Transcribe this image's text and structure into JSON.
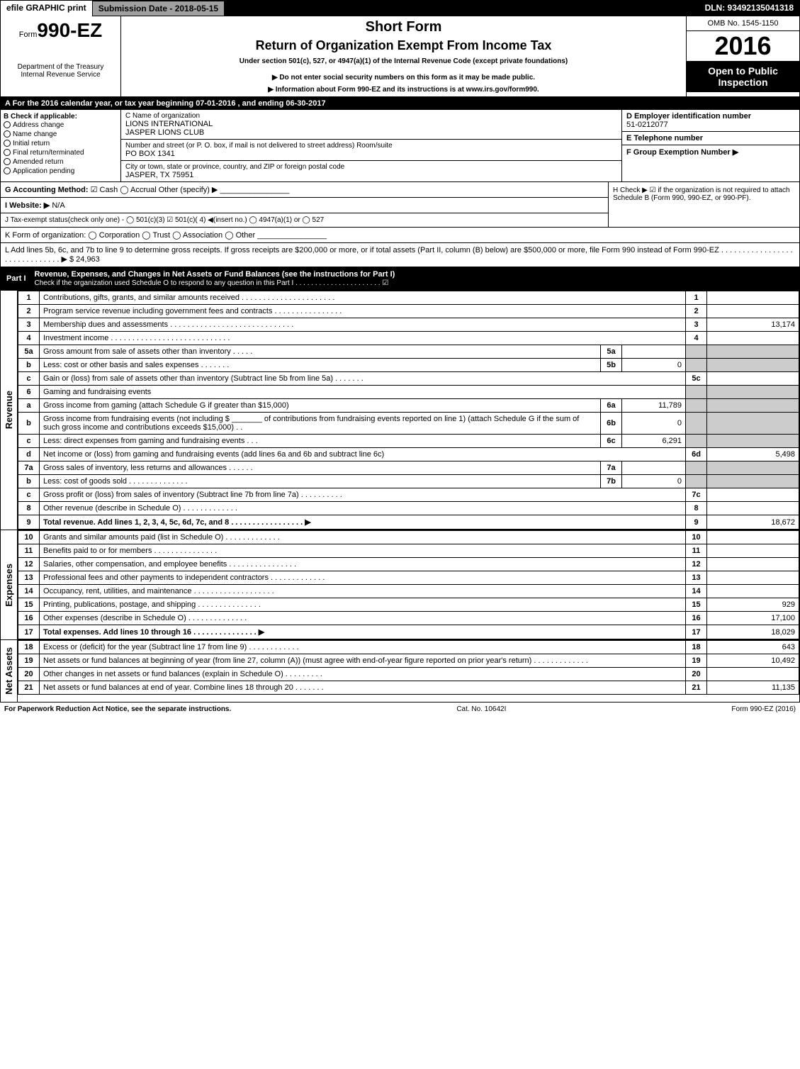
{
  "topbar": {
    "efile": "efile GRAPHIC print",
    "subdate_label": "Submission Date - 2018-05-15",
    "dln": "DLN: 93492135041318"
  },
  "header": {
    "form_prefix": "Form",
    "form_no": "990-EZ",
    "dept": "Department of the Treasury",
    "irs": "Internal Revenue Service",
    "title": "Short Form",
    "subtitle": "Return of Organization Exempt From Income Tax",
    "under": "Under section 501(c), 527, or 4947(a)(1) of the Internal Revenue Code (except private foundations)",
    "note1": "▶ Do not enter social security numbers on this form as it may be made public.",
    "note2": "▶ Information about Form 990-EZ and its instructions is at www.irs.gov/form990.",
    "omb": "OMB No. 1545-1150",
    "year": "2016",
    "open": "Open to Public Inspection"
  },
  "sectionA": "A For the 2016 calendar year, or tax year beginning 07-01-2016 , and ending 06-30-2017",
  "B": {
    "label": "B Check if applicable:",
    "items": [
      "Address change",
      "Name change",
      "Initial return",
      "Final return/terminated",
      "Amended return",
      "Application pending"
    ]
  },
  "C": {
    "name_lbl": "C Name of organization",
    "name1": "LIONS INTERNATIONAL",
    "name2": "JASPER LIONS CLUB",
    "addr_lbl": "Number and street (or P. O. box, if mail is not delivered to street address)   Room/suite",
    "addr": "PO BOX 1341",
    "city_lbl": "City or town, state or province, country, and ZIP or foreign postal code",
    "city": "JASPER, TX  75951"
  },
  "D": {
    "lbl": "D Employer identification number",
    "val": "51-0212077"
  },
  "E": {
    "lbl": "E Telephone number",
    "val": ""
  },
  "F": {
    "lbl": "F Group Exemption Number ▶",
    "val": ""
  },
  "G": {
    "lbl": "G Accounting Method:",
    "opts": "☑ Cash  ◯ Accrual  Other (specify) ▶ ________________"
  },
  "H": {
    "lbl": "H  Check ▶ ☑ if the organization is not required to attach Schedule B (Form 990, 990-EZ, or 990-PF)."
  },
  "I": {
    "lbl": "I Website: ▶",
    "val": "N/A"
  },
  "J": {
    "lbl": "J Tax-exempt status(check only one) - ◯ 501(c)(3) ☑ 501(c)( 4) ◀(insert no.) ◯ 4947(a)(1) or ◯ 527"
  },
  "K": {
    "lbl": "K Form of organization:  ◯ Corporation  ◯ Trust  ◯ Association  ◯ Other ________________"
  },
  "L": {
    "lbl": "L Add lines 5b, 6c, and 7b to line 9 to determine gross receipts. If gross receipts are $200,000 or more, or if total assets (Part II, column (B) below) are $500,000 or more, file Form 990 instead of Form 990-EZ . . . . . . . . . . . . . . . . . . . . . . . . . . . . . . ▶ $ 24,963"
  },
  "part1": {
    "label": "Part I",
    "title": "Revenue, Expenses, and Changes in Net Assets or Fund Balances (see the instructions for Part I)",
    "check": "Check if the organization used Schedule O to respond to any question in this Part I . . . . . . . . . . . . . . . . . . . . . . ☑"
  },
  "sections": {
    "revenue": "Revenue",
    "expenses": "Expenses",
    "netassets": "Net Assets"
  },
  "lines": [
    {
      "n": "1",
      "d": "Contributions, gifts, grants, and similar amounts received . . . . . . . . . . . . . . . . . . . . . .",
      "rn": "1",
      "amt": ""
    },
    {
      "n": "2",
      "d": "Program service revenue including government fees and contracts . . . . . . . . . . . . . . . .",
      "rn": "2",
      "amt": ""
    },
    {
      "n": "3",
      "d": "Membership dues and assessments . . . . . . . . . . . . . . . . . . . . . . . . . . . . .",
      "rn": "3",
      "amt": "13,174"
    },
    {
      "n": "4",
      "d": "Investment income . . . . . . . . . . . . . . . . . . . . . . . . . . . .",
      "rn": "4",
      "amt": ""
    },
    {
      "n": "5a",
      "d": "Gross amount from sale of assets other than inventory . . . . .",
      "sc": "5a",
      "sv": "",
      "shade": true
    },
    {
      "n": "b",
      "d": "Less: cost or other basis and sales expenses . . . . . . .",
      "sc": "5b",
      "sv": "0",
      "shade": true
    },
    {
      "n": "c",
      "d": "Gain or (loss) from sale of assets other than inventory (Subtract line 5b from line 5a) . . . . . . .",
      "rn": "5c",
      "amt": ""
    },
    {
      "n": "6",
      "d": "Gaming and fundraising events",
      "shade": true,
      "noright": true
    },
    {
      "n": "a",
      "d": "Gross income from gaming (attach Schedule G if greater than $15,000)",
      "sc": "6a",
      "sv": "11,789",
      "shade": true
    },
    {
      "n": "b",
      "d": "Gross income from fundraising events (not including $ _______ of contributions from fundraising events reported on line 1) (attach Schedule G if the sum of such gross income and contributions exceeds $15,000)  . .",
      "sc": "6b",
      "sv": "0",
      "shade": true
    },
    {
      "n": "c",
      "d": "Less: direct expenses from gaming and fundraising events    . . .",
      "sc": "6c",
      "sv": "6,291",
      "shade": true
    },
    {
      "n": "d",
      "d": "Net income or (loss) from gaming and fundraising events (add lines 6a and 6b and subtract line 6c)",
      "rn": "6d",
      "amt": "5,498"
    },
    {
      "n": "7a",
      "d": "Gross sales of inventory, less returns and allowances . . . . . .",
      "sc": "7a",
      "sv": "",
      "shade": true
    },
    {
      "n": "b",
      "d": "Less: cost of goods sold      . . . . . . . . . . . . . .",
      "sc": "7b",
      "sv": "0",
      "shade": true
    },
    {
      "n": "c",
      "d": "Gross profit or (loss) from sales of inventory (Subtract line 7b from line 7a) . . . . . . . . . .",
      "rn": "7c",
      "amt": ""
    },
    {
      "n": "8",
      "d": "Other revenue (describe in Schedule O)       . . . . . . . . . . . . .",
      "rn": "8",
      "amt": ""
    },
    {
      "n": "9",
      "d": "Total revenue. Add lines 1, 2, 3, 4, 5c, 6d, 7c, and 8 . . . . . . . . . . . . . . . . . ▶",
      "rn": "9",
      "amt": "18,672",
      "bold": true
    }
  ],
  "exp_lines": [
    {
      "n": "10",
      "d": "Grants and similar amounts paid (list in Schedule O)     . . . . . . . . . . . . .",
      "rn": "10",
      "amt": ""
    },
    {
      "n": "11",
      "d": "Benefits paid to or for members       . . . . . . . . . . . . . . .",
      "rn": "11",
      "amt": ""
    },
    {
      "n": "12",
      "d": "Salaries, other compensation, and employee benefits . . . . . . . . . . . . . . . .",
      "rn": "12",
      "amt": ""
    },
    {
      "n": "13",
      "d": "Professional fees and other payments to independent contractors . . . . . . . . . . . . .",
      "rn": "13",
      "amt": ""
    },
    {
      "n": "14",
      "d": "Occupancy, rent, utilities, and maintenance . . . . . . . . . . . . . . . . . . .",
      "rn": "14",
      "amt": ""
    },
    {
      "n": "15",
      "d": "Printing, publications, postage, and shipping     . . . . . . . . . . . . . . .",
      "rn": "15",
      "amt": "929"
    },
    {
      "n": "16",
      "d": "Other expenses (describe in Schedule O)      . . . . . . . . . . . . . .",
      "rn": "16",
      "amt": "17,100"
    },
    {
      "n": "17",
      "d": "Total expenses. Add lines 10 through 16     . . . . . . . . . . . . . . . ▶",
      "rn": "17",
      "amt": "18,029",
      "bold": true
    }
  ],
  "na_lines": [
    {
      "n": "18",
      "d": "Excess or (deficit) for the year (Subtract line 17 from line 9)    . . . . . . . . . . . .",
      "rn": "18",
      "amt": "643"
    },
    {
      "n": "19",
      "d": "Net assets or fund balances at beginning of year (from line 27, column (A)) (must agree with end-of-year figure reported on prior year's return)     . . . . . . . . . . . . .",
      "rn": "19",
      "amt": "10,492"
    },
    {
      "n": "20",
      "d": "Other changes in net assets or fund balances (explain in Schedule O)   . . . . . . . . .",
      "rn": "20",
      "amt": ""
    },
    {
      "n": "21",
      "d": "Net assets or fund balances at end of year. Combine lines 18 through 20   . . . . . . .",
      "rn": "21",
      "amt": "11,135"
    }
  ],
  "footer": {
    "left": "For Paperwork Reduction Act Notice, see the separate instructions.",
    "mid": "Cat. No. 10642I",
    "right": "Form 990-EZ (2016)"
  }
}
